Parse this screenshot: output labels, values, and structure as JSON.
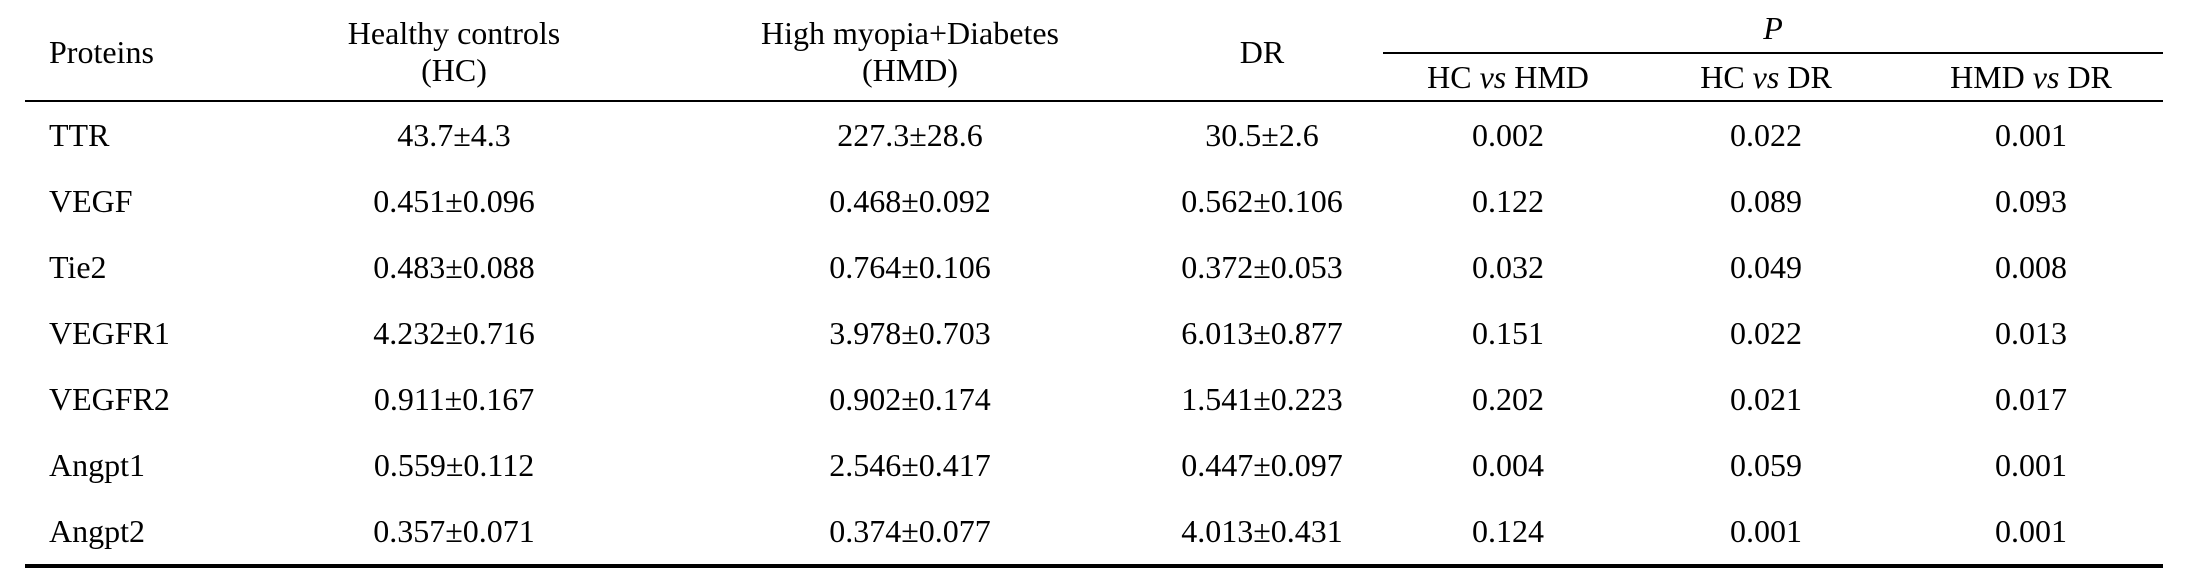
{
  "table": {
    "header": {
      "proteins": "Proteins",
      "hc_line1": "Healthy controls",
      "hc_line2": "(HC)",
      "hmd_line1": "High myopia+Diabetes",
      "hmd_line2": "(HMD)",
      "dr": "DR",
      "p": "P",
      "cmp1_a": "HC",
      "cmp1_vs": "vs",
      "cmp1_b": "HMD",
      "cmp2_a": "HC",
      "cmp2_vs": "vs",
      "cmp2_b": "DR",
      "cmp3_a": "HMD",
      "cmp3_vs": "vs",
      "cmp3_b": "DR"
    },
    "rows": [
      {
        "protein": "TTR",
        "hc": "43.7±4.3",
        "hmd": "227.3±28.6",
        "dr": "30.5±2.6",
        "p_hc_hmd": "0.002",
        "p_hc_dr": "0.022",
        "p_hmd_dr": "0.001"
      },
      {
        "protein": "VEGF",
        "hc": "0.451±0.096",
        "hmd": "0.468±0.092",
        "dr": "0.562±0.106",
        "p_hc_hmd": "0.122",
        "p_hc_dr": "0.089",
        "p_hmd_dr": "0.093"
      },
      {
        "protein": "Tie2",
        "hc": "0.483±0.088",
        "hmd": "0.764±0.106",
        "dr": "0.372±0.053",
        "p_hc_hmd": "0.032",
        "p_hc_dr": "0.049",
        "p_hmd_dr": "0.008"
      },
      {
        "protein": "VEGFR1",
        "hc": "4.232±0.716",
        "hmd": "3.978±0.703",
        "dr": "6.013±0.877",
        "p_hc_hmd": "0.151",
        "p_hc_dr": "0.022",
        "p_hmd_dr": "0.013"
      },
      {
        "protein": "VEGFR2",
        "hc": "0.911±0.167",
        "hmd": "0.902±0.174",
        "dr": "1.541±0.223",
        "p_hc_hmd": "0.202",
        "p_hc_dr": "0.021",
        "p_hmd_dr": "0.017"
      },
      {
        "protein": "Angpt1",
        "hc": "0.559±0.112",
        "hmd": "2.546±0.417",
        "dr": "0.447±0.097",
        "p_hc_hmd": "0.004",
        "p_hc_dr": "0.059",
        "p_hmd_dr": "0.001"
      },
      {
        "protein": "Angpt2",
        "hc": "0.357±0.071",
        "hmd": "0.374±0.077",
        "dr": "4.013±0.431",
        "p_hc_hmd": "0.124",
        "p_hc_dr": "0.001",
        "p_hmd_dr": "0.001"
      }
    ]
  }
}
